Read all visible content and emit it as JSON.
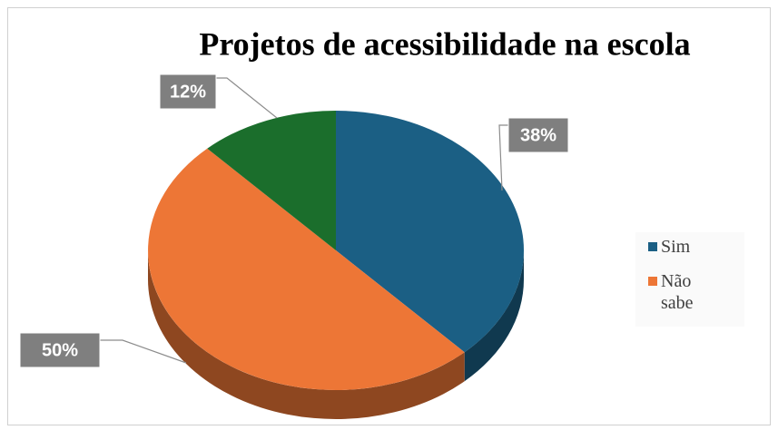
{
  "chart_data": {
    "type": "pie3d",
    "title": "Projetos de acessibilidade na escola",
    "categories": [
      "Sim",
      "Não sabe",
      null
    ],
    "values": [
      38,
      50,
      12
    ],
    "value_labels": [
      "38%",
      "50%",
      "12%"
    ],
    "colors": [
      "#1b5f84",
      "#ed7636",
      "#1b6e2c"
    ],
    "legend": "right"
  }
}
